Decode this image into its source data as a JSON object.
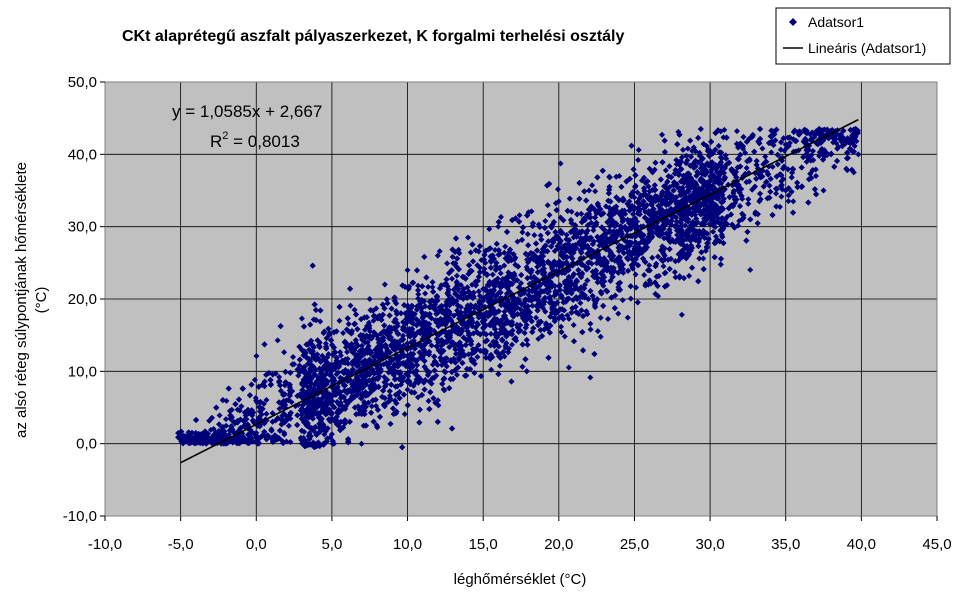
{
  "chart_data": {
    "type": "scatter",
    "title": "CKt alaprétegű aszfalt pályaszerkezet, K forgalmi terhelési osztály",
    "xlabel": "léghőmérséklet (°C)",
    "ylabel_line1": "az alsó réteg súlypontjának hőmérséklete",
    "ylabel_line2": "(°C)",
    "xlim": [
      -10,
      45
    ],
    "ylim": [
      -10,
      50
    ],
    "xticks": [
      "-10,0",
      "-5,0",
      "0,0",
      "5,0",
      "10,0",
      "15,0",
      "20,0",
      "25,0",
      "30,0",
      "35,0",
      "40,0",
      "45,0"
    ],
    "yticks": [
      "-10,0",
      "0,0",
      "10,0",
      "20,0",
      "30,0",
      "40,0",
      "50,0"
    ],
    "grid": true,
    "legend_position": "top-right",
    "series": [
      {
        "name": "Adatsor1",
        "kind": "scatter",
        "color": "#00007a",
        "marker": "diamond",
        "point_count_estimate": 8000,
        "cloud_summary": {
          "x_min": -5.2,
          "x_max": 39.8,
          "trend_slope": 1.0585,
          "trend_intercept": 2.667,
          "residual_sd": 4.2
        },
        "points": [
          [
            -5.0,
            1.0
          ],
          [
            -4.8,
            0.5
          ],
          [
            -4.5,
            1.2
          ],
          [
            -4.2,
            0.3
          ],
          [
            -4.0,
            1.5
          ],
          [
            -3.6,
            0.8
          ],
          [
            -3.2,
            0.2
          ],
          [
            -3.0,
            1.9
          ],
          [
            -2.6,
            0.4
          ],
          [
            -2.2,
            2.3
          ],
          [
            -1.8,
            0.6
          ],
          [
            -1.5,
            3.0
          ],
          [
            -1.0,
            0.9
          ],
          [
            -0.5,
            4.2
          ],
          [
            0.0,
            1.5
          ],
          [
            0.5,
            5.5
          ],
          [
            1.0,
            2.0
          ],
          [
            1.5,
            8.5
          ],
          [
            2.0,
            3.2
          ],
          [
            2.5,
            11.0
          ],
          [
            3.0,
            4.0
          ],
          [
            3.5,
            13.0
          ],
          [
            4.0,
            5.5
          ],
          [
            4.5,
            15.5
          ],
          [
            5.0,
            6.5
          ],
          [
            5.5,
            17.0
          ],
          [
            6.0,
            7.0
          ],
          [
            6.5,
            18.5
          ],
          [
            7.0,
            8.0
          ],
          [
            7.5,
            20.0
          ],
          [
            8.0,
            9.0
          ],
          [
            8.5,
            22.0
          ],
          [
            9.0,
            10.0
          ],
          [
            10.0,
            24.0
          ],
          [
            11.0,
            12.0
          ],
          [
            12.0,
            26.0
          ],
          [
            13.0,
            14.0
          ],
          [
            14.0,
            28.5
          ],
          [
            15.0,
            16.0
          ],
          [
            16.0,
            30.0
          ],
          [
            17.0,
            18.0
          ],
          [
            18.0,
            32.0
          ],
          [
            19.0,
            20.0
          ],
          [
            20.0,
            33.5
          ],
          [
            21.0,
            22.0
          ],
          [
            22.0,
            35.0
          ],
          [
            23.0,
            23.0
          ],
          [
            24.0,
            37.0
          ],
          [
            25.0,
            25.0
          ],
          [
            26.0,
            38.0
          ],
          [
            27.0,
            27.0
          ],
          [
            28.0,
            39.0
          ],
          [
            29.0,
            29.0
          ],
          [
            30.0,
            40.5
          ],
          [
            31.0,
            31.0
          ],
          [
            32.0,
            41.5
          ],
          [
            33.0,
            32.0
          ],
          [
            34.0,
            42.5
          ],
          [
            35.0,
            35.0
          ],
          [
            36.0,
            43.0
          ],
          [
            37.0,
            37.0
          ],
          [
            38.0,
            40.0
          ],
          [
            39.0,
            38.0
          ],
          [
            39.8,
            40.0
          ],
          [
            39.5,
            37.5
          ],
          [
            35.5,
            33.5
          ],
          [
            37.5,
            35.0
          ]
        ]
      },
      {
        "name": "Lineáris (Adatsor1)",
        "kind": "line",
        "color": "#000000",
        "x": [
          -5.0,
          39.8
        ],
        "slope": 1.0585,
        "intercept": 2.667
      }
    ],
    "annotation_equation": "y = 1,0585x + 2,667",
    "annotation_r2_prefix": "R",
    "annotation_r2_exp": "2",
    "annotation_r2_value": " = 0,8013"
  },
  "colors": {
    "plot_background": "#c0c0c0",
    "gridline": "#000000",
    "marker": "#00007a"
  }
}
